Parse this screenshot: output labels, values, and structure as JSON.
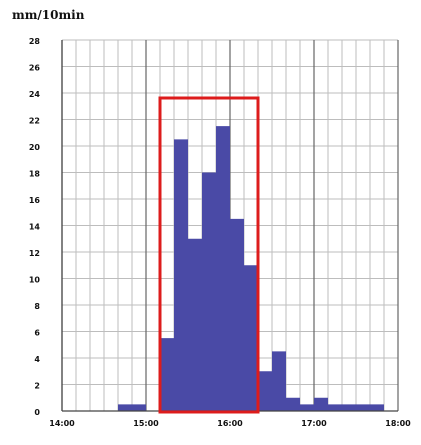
{
  "chart_data": {
    "type": "bar",
    "ylabel": "mm/10min",
    "ylim": [
      0,
      28
    ],
    "y_ticks": [
      "0",
      "2",
      "4",
      "6",
      "8",
      "10",
      "12",
      "14",
      "16",
      "18",
      "20",
      "22",
      "24",
      "26",
      "28"
    ],
    "x_ticks": [
      "14:00",
      "15:00",
      "16:00",
      "17:00",
      "18:00"
    ],
    "bin_minutes": 10,
    "start_time": "14:00",
    "values": [
      0,
      0,
      0,
      0,
      0.5,
      0.5,
      0,
      5.5,
      20.5,
      13,
      18,
      21.5,
      14.5,
      11,
      3,
      4.5,
      1,
      0.5,
      1,
      0.5,
      0.5,
      0.5,
      0.5,
      0,
      0
    ],
    "highlight_range": [
      "15:10",
      "16:20"
    ],
    "grid": true
  },
  "colors": {
    "bar": "#4a4aa6",
    "grid": "#bdbdbd",
    "highlight": "#dd1c1c",
    "axis": "#444444",
    "text": "#111111"
  }
}
